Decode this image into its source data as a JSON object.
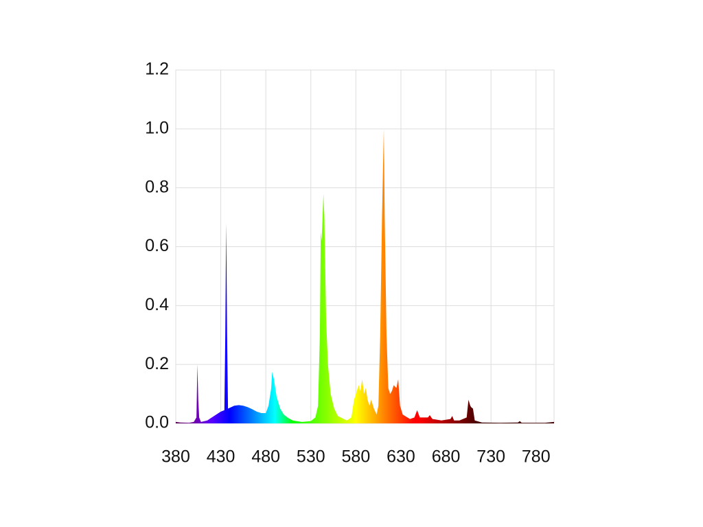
{
  "chart_data": {
    "type": "area",
    "spectral_fill": true,
    "grid": true,
    "x": [
      380,
      385,
      395,
      400,
      403,
      404,
      405,
      406,
      408,
      415,
      420,
      425,
      430,
      434,
      435,
      436,
      437,
      438,
      445,
      450,
      455,
      460,
      465,
      470,
      475,
      480,
      483,
      486,
      487,
      489,
      492,
      496,
      500,
      505,
      510,
      520,
      530,
      535,
      538,
      540,
      541,
      542,
      544,
      545,
      547,
      549,
      552,
      556,
      560,
      570,
      575,
      578,
      580,
      583,
      585,
      587,
      589,
      591,
      593,
      595,
      597,
      600,
      603,
      605,
      607,
      609,
      611,
      612,
      614,
      616,
      618,
      620,
      622,
      625,
      627,
      629,
      632,
      640,
      645,
      648,
      651,
      660,
      662,
      665,
      675,
      685,
      687,
      689,
      695,
      703,
      705,
      707,
      708,
      710,
      712,
      720,
      740,
      760,
      762,
      764,
      790,
      800
    ],
    "values": [
      0.005,
      0.003,
      0.002,
      0.005,
      0.02,
      0.2,
      0.08,
      0.02,
      0.005,
      0.01,
      0.02,
      0.03,
      0.04,
      0.045,
      0.3,
      0.68,
      0.3,
      0.05,
      0.06,
      0.062,
      0.06,
      0.055,
      0.048,
      0.04,
      0.035,
      0.035,
      0.06,
      0.12,
      0.175,
      0.15,
      0.09,
      0.05,
      0.03,
      0.018,
      0.01,
      0.005,
      0.008,
      0.02,
      0.06,
      0.3,
      0.65,
      0.62,
      0.78,
      0.7,
      0.35,
      0.2,
      0.1,
      0.05,
      0.025,
      0.01,
      0.02,
      0.08,
      0.1,
      0.13,
      0.11,
      0.15,
      0.1,
      0.12,
      0.08,
      0.06,
      0.08,
      0.05,
      0.03,
      0.06,
      0.3,
      0.7,
      1.0,
      0.7,
      0.3,
      0.12,
      0.1,
      0.11,
      0.13,
      0.12,
      0.15,
      0.06,
      0.03,
      0.015,
      0.02,
      0.045,
      0.02,
      0.02,
      0.028,
      0.015,
      0.01,
      0.015,
      0.025,
      0.01,
      0.01,
      0.02,
      0.08,
      0.06,
      0.055,
      0.05,
      0.01,
      0.003,
      0.002,
      0.003,
      0.008,
      0.002,
      0.002,
      0.005
    ],
    "xlim": [
      380,
      800
    ],
    "xticks": [
      380,
      430,
      480,
      530,
      580,
      630,
      680,
      730,
      780
    ],
    "ylim": [
      0,
      1.2
    ],
    "yticks": [
      {
        "value": 0,
        "label": "0.0"
      },
      0.2,
      0.4,
      0.6,
      0.8,
      {
        "value": 1,
        "label": "1.0"
      },
      1.2
    ]
  }
}
